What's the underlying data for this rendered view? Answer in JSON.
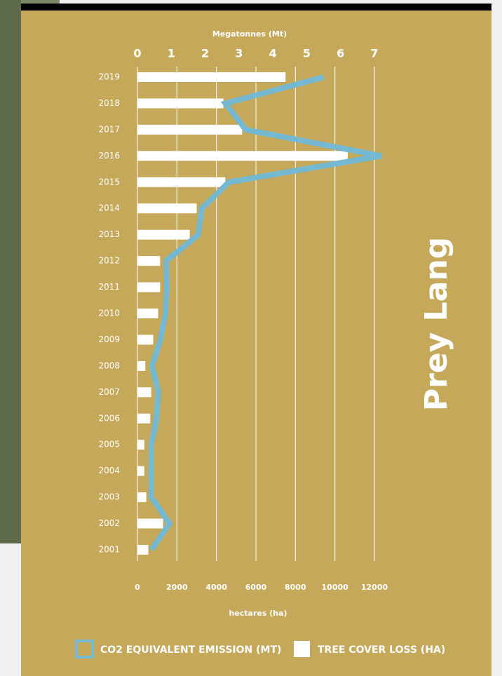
{
  "chart_data": {
    "type": "bar",
    "orientation": "horizontal",
    "title": "Prey Lang",
    "xlabel": "hectares (ha)",
    "x2label": "Megatonnes (Mt)",
    "categories": [
      "2019",
      "2018",
      "2017",
      "2016",
      "2015",
      "2014",
      "2013",
      "2012",
      "2011",
      "2010",
      "2009",
      "2008",
      "2007",
      "2006",
      "2005",
      "2004",
      "2003",
      "2002",
      "2001"
    ],
    "series": [
      {
        "name": "TREE COVER LOSS (HA)",
        "type": "bar",
        "color": "#ffffff",
        "values": [
          7500,
          4350,
          5300,
          10650,
          4450,
          3000,
          2650,
          1150,
          1150,
          1050,
          800,
          400,
          700,
          650,
          350,
          350,
          450,
          1300,
          550
        ]
      },
      {
        "name": "CO2 EQUIVALENT EMISSION (MT)",
        "type": "line",
        "axis": "x2",
        "color": "#74b9d1",
        "values": [
          5.5,
          2.6,
          3.2,
          7.2,
          2.7,
          1.9,
          1.8,
          0.85,
          0.87,
          0.83,
          0.68,
          0.43,
          0.62,
          0.56,
          0.41,
          0.41,
          0.41,
          0.95,
          0.41
        ]
      }
    ],
    "xlim": [
      0,
      12000
    ],
    "xticks": [
      0,
      2000,
      4000,
      6000,
      8000,
      10000,
      12000
    ],
    "x2lim": [
      0,
      7
    ],
    "x2ticks": [
      0,
      1,
      2,
      3,
      4,
      5,
      6,
      7
    ],
    "grid": true
  }
}
